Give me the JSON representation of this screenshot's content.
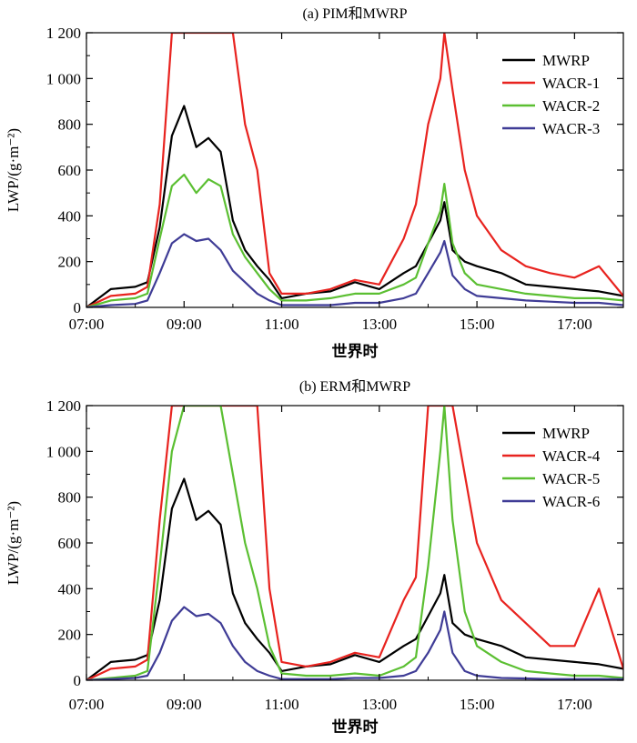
{
  "chart_data": [
    {
      "type": "line",
      "title": "(a) PIM和MWRP",
      "xlabel": "世界时",
      "ylabel": "LWP/(g·m⁻²)",
      "xlim": [
        "07:00",
        "18:00"
      ],
      "ylim": [
        0,
        1200
      ],
      "x_ticks": [
        "07:00",
        "09:00",
        "11:00",
        "13:00",
        "15:00",
        "17:00"
      ],
      "y_ticks": [
        "0",
        "200",
        "400",
        "600",
        "800",
        "1 000",
        "1 200"
      ],
      "grid": false,
      "legend_position": "top-right",
      "x": [
        "07:00",
        "07:30",
        "08:00",
        "08:15",
        "08:30",
        "08:45",
        "09:00",
        "09:15",
        "09:30",
        "09:45",
        "10:00",
        "10:15",
        "10:30",
        "10:45",
        "11:00",
        "11:30",
        "12:00",
        "12:30",
        "13:00",
        "13:30",
        "13:45",
        "14:00",
        "14:15",
        "14:20",
        "14:30",
        "14:45",
        "15:00",
        "15:30",
        "16:00",
        "16:30",
        "17:00",
        "17:30",
        "18:00"
      ],
      "series": [
        {
          "name": "MWRP",
          "color": "#000000",
          "values": [
            0,
            80,
            90,
            110,
            350,
            750,
            880,
            700,
            740,
            680,
            380,
            250,
            180,
            120,
            40,
            60,
            70,
            110,
            80,
            150,
            180,
            280,
            380,
            460,
            250,
            200,
            180,
            150,
            100,
            90,
            80,
            70,
            50
          ]
        },
        {
          "name": "WACR-1",
          "color": "#e8231f",
          "values": [
            0,
            50,
            60,
            90,
            450,
            1200,
            1200,
            1200,
            1200,
            1200,
            1200,
            800,
            600,
            150,
            60,
            60,
            80,
            120,
            100,
            300,
            450,
            800,
            1000,
            1200,
            950,
            600,
            400,
            250,
            180,
            150,
            130,
            180,
            50
          ]
        },
        {
          "name": "WACR-2",
          "color": "#5bbf32",
          "values": [
            0,
            30,
            40,
            60,
            300,
            530,
            580,
            500,
            560,
            530,
            320,
            220,
            150,
            80,
            30,
            30,
            40,
            60,
            60,
            100,
            130,
            280,
            420,
            540,
            280,
            150,
            100,
            80,
            60,
            50,
            40,
            40,
            30
          ]
        },
        {
          "name": "WACR-3",
          "color": "#3f3c96",
          "values": [
            0,
            10,
            15,
            30,
            150,
            280,
            320,
            290,
            300,
            250,
            160,
            110,
            60,
            30,
            10,
            10,
            10,
            20,
            20,
            40,
            60,
            150,
            240,
            290,
            140,
            80,
            50,
            40,
            30,
            25,
            20,
            20,
            10
          ]
        }
      ]
    },
    {
      "type": "line",
      "title": "(b) ERM和MWRP",
      "xlabel": "世界时",
      "ylabel": "LWP/(g·m⁻²)",
      "xlim": [
        "07:00",
        "18:00"
      ],
      "ylim": [
        0,
        1200
      ],
      "x_ticks": [
        "07:00",
        "09:00",
        "11:00",
        "13:00",
        "15:00",
        "17:00"
      ],
      "y_ticks": [
        "0",
        "200",
        "400",
        "600",
        "800",
        "1 000",
        "1 200"
      ],
      "grid": false,
      "legend_position": "top-right",
      "x": [
        "07:00",
        "07:30",
        "08:00",
        "08:15",
        "08:30",
        "08:45",
        "09:00",
        "09:15",
        "09:30",
        "09:45",
        "10:00",
        "10:15",
        "10:30",
        "10:45",
        "11:00",
        "11:30",
        "12:00",
        "12:30",
        "13:00",
        "13:30",
        "13:45",
        "14:00",
        "14:15",
        "14:20",
        "14:30",
        "14:45",
        "15:00",
        "15:30",
        "16:00",
        "16:30",
        "17:00",
        "17:30",
        "18:00"
      ],
      "series": [
        {
          "name": "MWRP",
          "color": "#000000",
          "values": [
            0,
            80,
            90,
            110,
            350,
            750,
            880,
            700,
            740,
            680,
            380,
            250,
            180,
            120,
            40,
            60,
            70,
            110,
            80,
            150,
            180,
            280,
            380,
            460,
            250,
            200,
            180,
            150,
            100,
            90,
            80,
            70,
            50
          ]
        },
        {
          "name": "WACR-4",
          "color": "#e8231f",
          "values": [
            0,
            50,
            60,
            90,
            700,
            1200,
            1200,
            1200,
            1200,
            1200,
            1200,
            1200,
            1200,
            400,
            80,
            60,
            80,
            120,
            100,
            350,
            450,
            1200,
            1200,
            1200,
            1200,
            900,
            600,
            350,
            250,
            150,
            150,
            400,
            50
          ]
        },
        {
          "name": "WACR-5",
          "color": "#5bbf32",
          "values": [
            0,
            10,
            20,
            40,
            500,
            1000,
            1200,
            1200,
            1200,
            1200,
            900,
            600,
            400,
            150,
            30,
            20,
            20,
            30,
            20,
            60,
            100,
            500,
            1000,
            1200,
            700,
            300,
            150,
            80,
            40,
            30,
            20,
            20,
            10
          ]
        },
        {
          "name": "WACR-6",
          "color": "#3f3c96",
          "values": [
            0,
            5,
            10,
            20,
            120,
            260,
            320,
            280,
            290,
            250,
            150,
            80,
            40,
            20,
            5,
            5,
            5,
            10,
            10,
            20,
            40,
            120,
            220,
            300,
            120,
            40,
            20,
            10,
            8,
            5,
            5,
            5,
            5
          ]
        }
      ]
    }
  ]
}
